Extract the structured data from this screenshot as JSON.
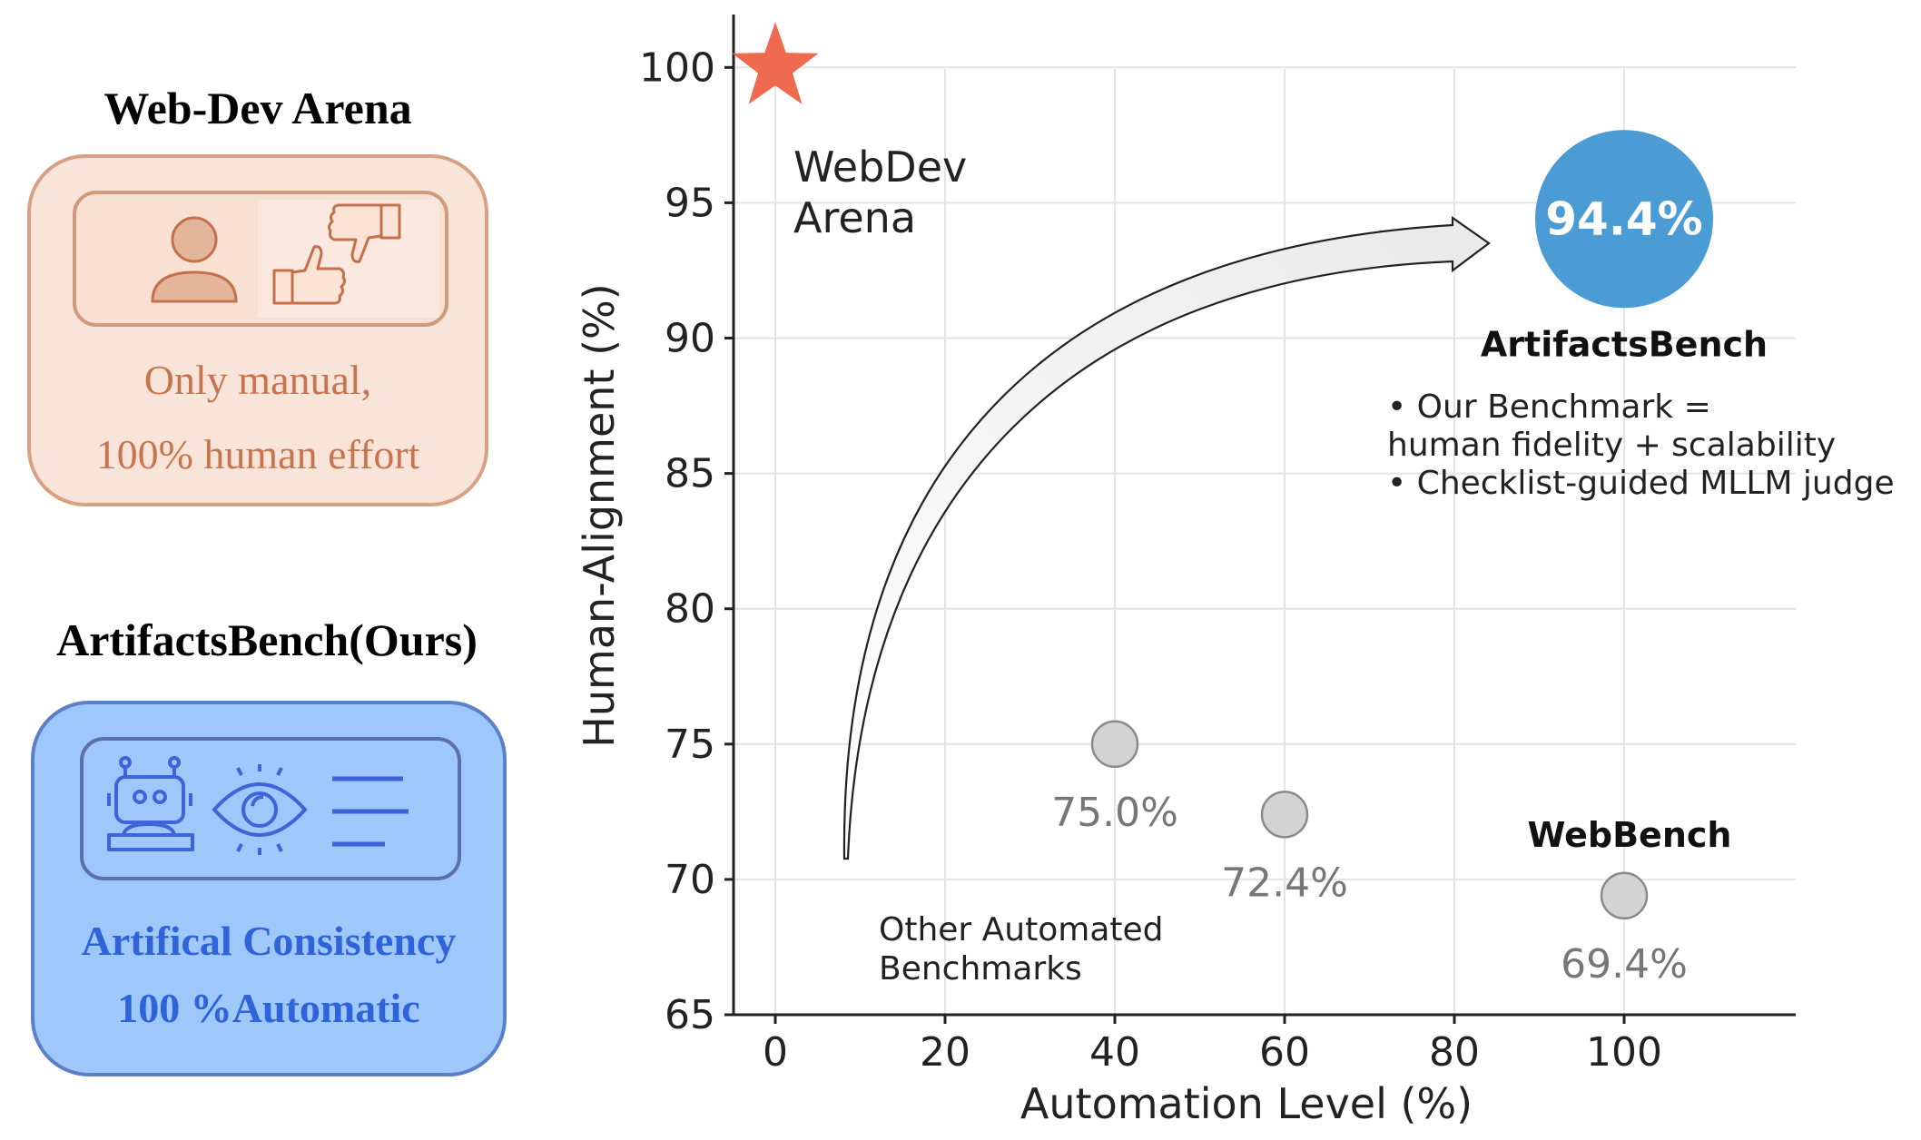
{
  "left_panel": {
    "manual": {
      "title": "Web-Dev Arena",
      "line1": "Only manual,",
      "line2": "100% human effort",
      "icons": [
        "person-icon",
        "thumbs-up-icon",
        "thumbs-down-icon"
      ]
    },
    "auto": {
      "title": "ArtifactsBench(Ours)",
      "line1": "Artifical Consistency",
      "line2": "100 %Automatic",
      "icons": [
        "robot-icon",
        "eye-icon",
        "text-lines-icon"
      ]
    }
  },
  "chart_data": {
    "type": "scatter",
    "xlabel": "Automation Level (%)",
    "ylabel": "Human-Alignment (%)",
    "xlim": [
      -5,
      120
    ],
    "ylim": [
      65,
      102
    ],
    "xticks": [
      0,
      20,
      40,
      60,
      80,
      100
    ],
    "yticks": [
      65,
      70,
      75,
      80,
      85,
      90,
      95,
      100
    ],
    "grid": true,
    "points": [
      {
        "id": "webdev-arena",
        "x": 0,
        "y": 100,
        "marker": "star",
        "color": "#ef6a4e",
        "label": "WebDev\nArena"
      },
      {
        "id": "artifactsbench",
        "x": 100,
        "y": 94.4,
        "marker": "circle-large",
        "color": "#4b9bd4",
        "value_label": "94.4%",
        "name": "ArtifactsBench"
      },
      {
        "id": "bench-75",
        "x": 40,
        "y": 75.0,
        "marker": "circle",
        "color": "#d3d3d3",
        "value_label": "75.0%"
      },
      {
        "id": "bench-72",
        "x": 60,
        "y": 72.4,
        "marker": "circle",
        "color": "#d3d3d3",
        "value_label": "72.4%"
      },
      {
        "id": "webbench",
        "x": 100,
        "y": 69.4,
        "marker": "circle",
        "color": "#d3d3d3",
        "value_label": "69.4%",
        "name": "WebBench"
      }
    ],
    "annotations": {
      "other_automated": [
        "Other Automated",
        "Benchmarks"
      ],
      "benchmark_notes": [
        "• Our Benchmark =",
        "human fidelity + scalability",
        "• Checklist-guided MLLM judge"
      ]
    }
  }
}
